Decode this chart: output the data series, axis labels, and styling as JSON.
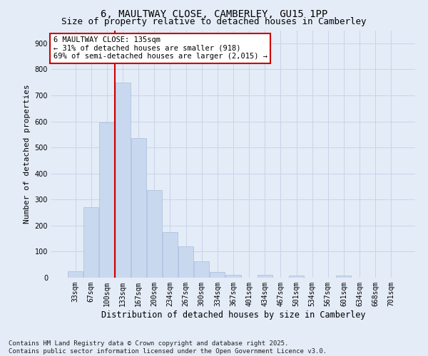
{
  "title_line1": "6, MAULTWAY CLOSE, CAMBERLEY, GU15 1PP",
  "title_line2": "Size of property relative to detached houses in Camberley",
  "xlabel": "Distribution of detached houses by size in Camberley",
  "ylabel": "Number of detached properties",
  "categories": [
    "33sqm",
    "67sqm",
    "100sqm",
    "133sqm",
    "167sqm",
    "200sqm",
    "234sqm",
    "267sqm",
    "300sqm",
    "334sqm",
    "367sqm",
    "401sqm",
    "434sqm",
    "467sqm",
    "501sqm",
    "534sqm",
    "567sqm",
    "601sqm",
    "634sqm",
    "668sqm",
    "701sqm"
  ],
  "values": [
    25,
    270,
    595,
    750,
    535,
    335,
    175,
    120,
    62,
    22,
    12,
    0,
    12,
    0,
    8,
    0,
    0,
    8,
    0,
    0,
    0
  ],
  "bar_color": "#c8d9ef",
  "bar_edge_color": "#aabbdd",
  "grid_color": "#c8d4e8",
  "background_color": "#e4ecf7",
  "vline_color": "#cc0000",
  "vline_x_index": 3,
  "annotation_text": "6 MAULTWAY CLOSE: 135sqm\n← 31% of detached houses are smaller (918)\n69% of semi-detached houses are larger (2,015) →",
  "annotation_box_facecolor": "#ffffff",
  "annotation_box_edgecolor": "#cc0000",
  "ylim": [
    0,
    950
  ],
  "yticks": [
    0,
    100,
    200,
    300,
    400,
    500,
    600,
    700,
    800,
    900
  ],
  "footer_line1": "Contains HM Land Registry data © Crown copyright and database right 2025.",
  "footer_line2": "Contains public sector information licensed under the Open Government Licence v3.0.",
  "title1_fontsize": 10,
  "title2_fontsize": 9,
  "xlabel_fontsize": 8.5,
  "ylabel_fontsize": 8,
  "tick_fontsize": 7,
  "annotation_fontsize": 7.5,
  "footer_fontsize": 6.5
}
